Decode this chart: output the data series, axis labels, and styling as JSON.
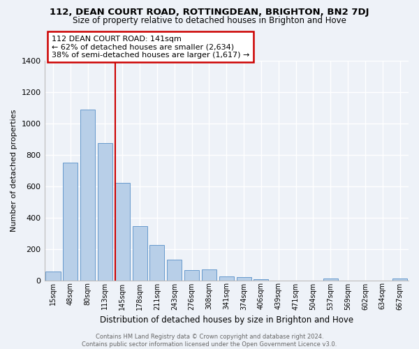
{
  "title": "112, DEAN COURT ROAD, ROTTINGDEAN, BRIGHTON, BN2 7DJ",
  "subtitle": "Size of property relative to detached houses in Brighton and Hove",
  "xlabel": "Distribution of detached houses by size in Brighton and Hove",
  "ylabel": "Number of detached properties",
  "bar_labels": [
    "15sqm",
    "48sqm",
    "80sqm",
    "113sqm",
    "145sqm",
    "178sqm",
    "211sqm",
    "243sqm",
    "276sqm",
    "308sqm",
    "341sqm",
    "374sqm",
    "406sqm",
    "439sqm",
    "471sqm",
    "504sqm",
    "537sqm",
    "569sqm",
    "602sqm",
    "634sqm",
    "667sqm"
  ],
  "bar_values": [
    55,
    750,
    1090,
    875,
    620,
    345,
    225,
    130,
    65,
    70,
    25,
    20,
    8,
    0,
    0,
    0,
    13,
    0,
    0,
    0,
    13
  ],
  "bar_color": "#b8cfe8",
  "bar_edge_color": "#6699cc",
  "vline_bar_index": 4,
  "vline_color": "#cc0000",
  "annotation_line1": "112 DEAN COURT ROAD: 141sqm",
  "annotation_line2": "← 62% of detached houses are smaller (2,634)",
  "annotation_line3": "38% of semi-detached houses are larger (1,617) →",
  "ylim": [
    0,
    1400
  ],
  "yticks": [
    0,
    200,
    400,
    600,
    800,
    1000,
    1200,
    1400
  ],
  "footer1": "Contains HM Land Registry data © Crown copyright and database right 2024.",
  "footer2": "Contains public sector information licensed under the Open Government Licence v3.0.",
  "background_color": "#eef2f8",
  "plot_bg_color": "#eef2f8"
}
